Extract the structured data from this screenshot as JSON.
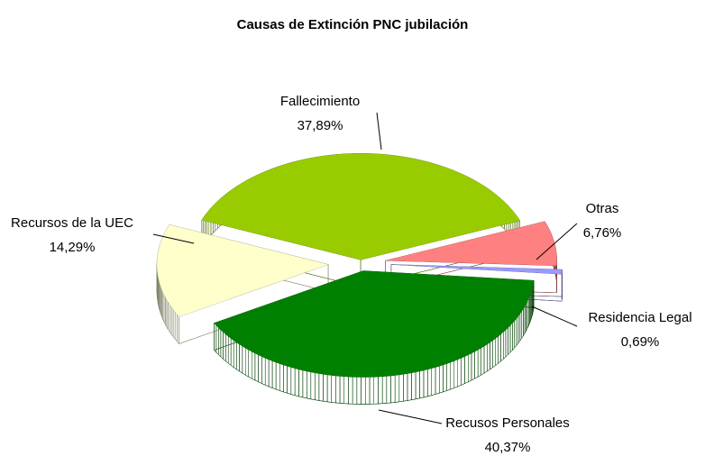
{
  "chart_data": {
    "type": "pie",
    "title": "Causas de Extinción PNC jubilación",
    "categories": [
      "Fallecimiento",
      "Otras",
      "Residencia Legal",
      "Recusos Personales",
      "Recursos de la UEC"
    ],
    "values": [
      37.89,
      6.76,
      0.69,
      40.37,
      14.29
    ],
    "value_labels": [
      "37,89%",
      "6,76%",
      "0,69%",
      "40,37%",
      "14,29%"
    ],
    "colors": [
      "#99cc00",
      "#ff8080",
      "#9999ff",
      "#008000",
      "#ffffcc"
    ]
  }
}
